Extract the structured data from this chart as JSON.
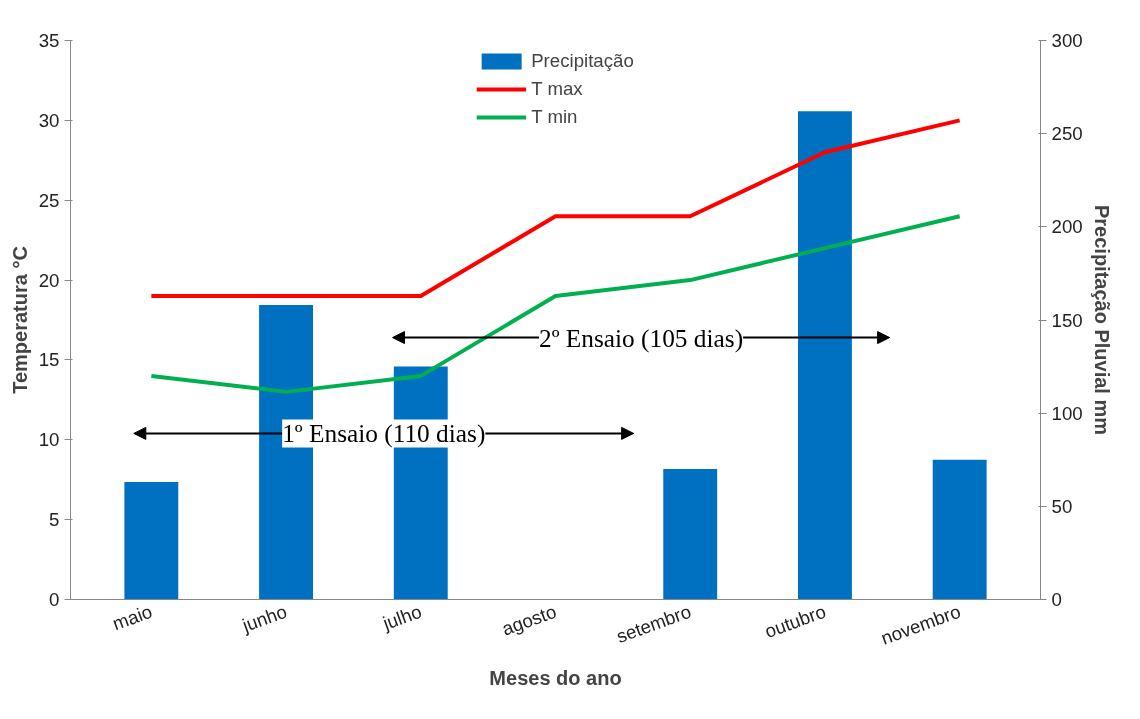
{
  "chart_data": {
    "type": "line",
    "categories": [
      "maio",
      "junho",
      "julho",
      "agosto",
      "setembro",
      "outubro",
      "novembro"
    ],
    "xlabel": "Meses do ano",
    "ylabel": "Temperatura °C",
    "y2label": "Precipitação Pluvial mm",
    "series": [
      {
        "name": "Precipitação",
        "type": "bar",
        "axis": "y2",
        "color": "#0070c0",
        "values": [
          63,
          158,
          125,
          0,
          70,
          262,
          75
        ]
      },
      {
        "name": "T max",
        "color": "#ff0000",
        "values": [
          19,
          19,
          19,
          24,
          24,
          28,
          30
        ]
      },
      {
        "name": "T min",
        "color": "#00b050",
        "values": [
          14,
          13,
          14,
          19,
          20,
          22,
          24
        ]
      }
    ],
    "ylim": [
      0,
      35
    ],
    "yticks": [
      0,
      5,
      10,
      15,
      20,
      25,
      30,
      35
    ],
    "y2lim": [
      0,
      300
    ],
    "y2ticks": [
      0,
      50,
      100,
      150,
      200,
      250,
      300
    ],
    "annotations": [
      "1º Ensaio (110 dias)",
      "2º Ensaio (105 dias)"
    ],
    "legend": "top",
    "grid": false,
    "marker": "none",
    "line_style": "solid"
  }
}
